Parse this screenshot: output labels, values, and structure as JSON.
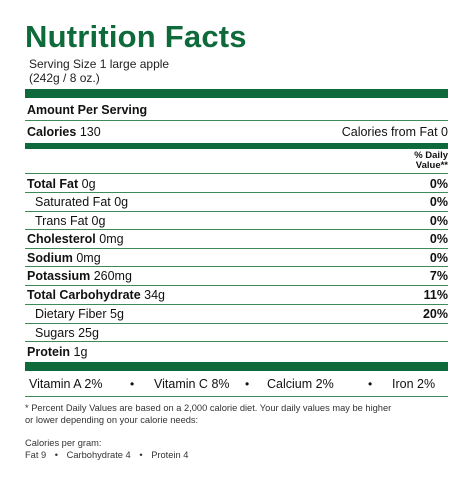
{
  "title": "Nutrition Facts",
  "serving": {
    "line1": "Serving Size 1 large apple",
    "line2": "(242g / 8 oz.)"
  },
  "amount_per_serving": "Amount Per Serving",
  "calories": {
    "label": "Calories",
    "value": "130",
    "from_fat": "Calories from Fat 0"
  },
  "daily_value_header": {
    "line1": "% Daily",
    "line2": "Value**"
  },
  "nutrients": [
    {
      "label": "Total Fat",
      "amount": "0g",
      "dv": "0%"
    },
    {
      "label": "Saturated Fat",
      "amount": "0g",
      "dv": "0%"
    },
    {
      "label": "Trans Fat",
      "amount": "0g",
      "dv": "0%"
    },
    {
      "label": "Cholesterol",
      "amount": "0mg",
      "dv": "0%"
    },
    {
      "label": "Sodium",
      "amount": "0mg",
      "dv": "0%"
    },
    {
      "label": "Potassium",
      "amount": "260mg",
      "dv": "7%"
    },
    {
      "label": "Total Carbohydrate",
      "amount": "34g",
      "dv": "11%"
    },
    {
      "label": "Dietary Fiber",
      "amount": "5g",
      "dv": "20%"
    },
    {
      "label": "Sugars",
      "amount": "25g",
      "dv": ""
    },
    {
      "label": "Protein",
      "amount": "1g",
      "dv": ""
    }
  ],
  "vitamins": [
    {
      "label": "Vitamin A",
      "value": "2%"
    },
    {
      "label": "Vitamin C",
      "value": "8%"
    },
    {
      "label": "Calcium",
      "value": "2%"
    },
    {
      "label": "Iron",
      "value": "2%"
    }
  ],
  "bullet": "•",
  "footnote": {
    "line1": "* Percent Daily Values are based on a 2,000  calorie diet. Your daily values may be higher",
    "line2": "or lower depending on your calorie needs:"
  },
  "calories_per_gram": {
    "heading": "Calories per gram:",
    "fat": "Fat 9",
    "carbohydrate": "Carbohydrate 4",
    "protein": "Protein 4"
  },
  "colors": {
    "brand_green": "#0e6a3a",
    "rule_green": "#3c8a5a"
  }
}
